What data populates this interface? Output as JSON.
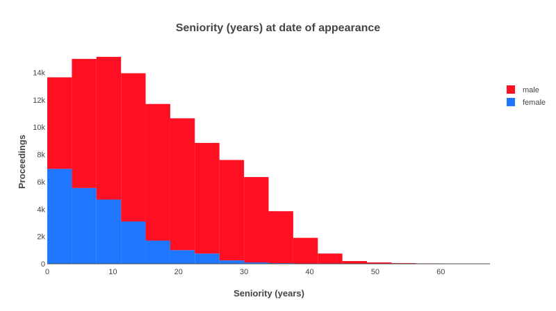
{
  "chart_data": {
    "type": "bar",
    "mode": "stacked-histogram",
    "title": "Seniority (years) at date of appearance",
    "xlabel": "Seniority (years)",
    "ylabel": "Proceedings",
    "xlim": [
      0,
      67.5
    ],
    "ylim": [
      0,
      15500
    ],
    "xticks": [
      0,
      10,
      20,
      30,
      40,
      50,
      60
    ],
    "xtick_labels": [
      "0",
      "10",
      "20",
      "30",
      "40",
      "50",
      "60"
    ],
    "yticks": [
      0,
      2000,
      4000,
      6000,
      8000,
      10000,
      12000,
      14000
    ],
    "ytick_labels": [
      "0",
      "2k",
      "4k",
      "6k",
      "8k",
      "10k",
      "12k",
      "14k"
    ],
    "grid": false,
    "legend_position": "top-right",
    "bin_edges": [
      0,
      3.75,
      7.5,
      11.25,
      15,
      18.75,
      22.5,
      26.25,
      30,
      33.75,
      37.5,
      41.25,
      45,
      48.75,
      52.5,
      56.25,
      60,
      63.75,
      67.5
    ],
    "series": [
      {
        "name": "female",
        "color": "#1f77ff",
        "values": [
          6950,
          5550,
          4700,
          3100,
          1700,
          1000,
          750,
          250,
          100,
          50,
          20,
          10,
          5,
          0,
          0,
          0,
          0,
          0
        ]
      },
      {
        "name": "male",
        "color": "#ff0f22",
        "values": [
          6700,
          9450,
          10450,
          10850,
          10000,
          9650,
          8100,
          7350,
          6250,
          3800,
          1880,
          740,
          195,
          100,
          50,
          30,
          20,
          10
        ]
      }
    ],
    "legend_order": [
      "male",
      "female"
    ]
  }
}
